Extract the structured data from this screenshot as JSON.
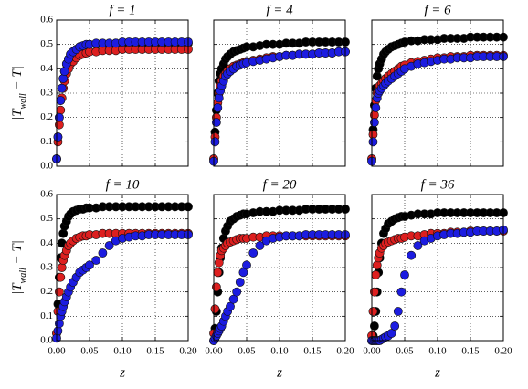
{
  "chart_data": [
    {
      "type": "scatter",
      "title": "f = 1",
      "x": [
        0,
        0.002,
        0.004,
        0.006,
        0.008,
        0.01,
        0.012,
        0.015,
        0.018,
        0.021,
        0.025,
        0.03,
        0.035,
        0.04,
        0.045,
        0.05,
        0.06,
        0.07,
        0.08,
        0.09,
        0.1,
        0.11,
        0.12,
        0.13,
        0.14,
        0.15,
        0.16,
        0.17,
        0.18,
        0.19,
        0.2
      ],
      "series": [
        {
          "color": "#000000",
          "values": [
            0.03,
            0.12,
            0.2,
            0.27,
            0.32,
            0.36,
            0.39,
            0.42,
            0.44,
            0.46,
            0.47,
            0.48,
            0.49,
            0.49,
            0.495,
            0.5,
            0.5,
            0.5,
            0.5,
            0.505,
            0.505,
            0.505,
            0.505,
            0.505,
            0.505,
            0.505,
            0.505,
            0.505,
            0.505,
            0.505,
            0.505
          ]
        },
        {
          "color": "#dd1f1f",
          "values": [
            0.03,
            0.1,
            0.17,
            0.23,
            0.28,
            0.32,
            0.35,
            0.38,
            0.4,
            0.42,
            0.43,
            0.445,
            0.455,
            0.46,
            0.465,
            0.47,
            0.47,
            0.475,
            0.475,
            0.475,
            0.48,
            0.48,
            0.48,
            0.48,
            0.48,
            0.48,
            0.48,
            0.48,
            0.48,
            0.48,
            0.48
          ]
        },
        {
          "color": "#1c1ce0",
          "values": [
            0.03,
            0.12,
            0.2,
            0.27,
            0.32,
            0.36,
            0.39,
            0.42,
            0.44,
            0.46,
            0.47,
            0.48,
            0.49,
            0.495,
            0.5,
            0.5,
            0.505,
            0.505,
            0.505,
            0.505,
            0.51,
            0.51,
            0.51,
            0.51,
            0.51,
            0.51,
            0.51,
            0.51,
            0.51,
            0.51,
            0.51
          ]
        }
      ],
      "xlim": [
        0,
        0.2
      ],
      "ylim": [
        0,
        0.6
      ],
      "xticks": [
        0,
        0.05,
        0.1,
        0.15,
        0.2
      ],
      "yticks": [
        {
          "value": 0,
          "label": "0.0"
        },
        {
          "value": 0.1,
          "label": "0.1"
        },
        {
          "value": 0.2,
          "label": "0.2"
        },
        {
          "value": 0.3,
          "label": "0.3"
        },
        {
          "value": 0.4,
          "label": "0.4"
        },
        {
          "value": 0.5,
          "label": "0.5"
        },
        {
          "value": 0.6,
          "label": "0.6"
        }
      ],
      "ylabel": [
        "|T",
        "wall",
        " − T|"
      ],
      "grid": true
    },
    {
      "type": "scatter",
      "title": "f = 4",
      "x": [
        0,
        0.002,
        0.004,
        0.006,
        0.008,
        0.01,
        0.012,
        0.015,
        0.018,
        0.021,
        0.025,
        0.03,
        0.035,
        0.04,
        0.045,
        0.05,
        0.06,
        0.07,
        0.08,
        0.09,
        0.1,
        0.11,
        0.12,
        0.13,
        0.14,
        0.15,
        0.16,
        0.17,
        0.18,
        0.19,
        0.2
      ],
      "series": [
        {
          "color": "#000000",
          "values": [
            0.03,
            0.14,
            0.23,
            0.3,
            0.35,
            0.38,
            0.4,
            0.42,
            0.44,
            0.45,
            0.46,
            0.47,
            0.475,
            0.48,
            0.485,
            0.49,
            0.49,
            0.495,
            0.5,
            0.5,
            0.5,
            0.505,
            0.505,
            0.505,
            0.51,
            0.51,
            0.51,
            0.51,
            0.51,
            0.51,
            0.51
          ]
        },
        {
          "color": "#dd1f1f",
          "values": [
            0.03,
            0.12,
            0.2,
            0.26,
            0.3,
            0.33,
            0.35,
            0.37,
            0.38,
            0.39,
            0.4,
            0.41,
            0.415,
            0.42,
            0.425,
            0.43,
            0.435,
            0.44,
            0.445,
            0.45,
            0.45,
            0.455,
            0.455,
            0.46,
            0.46,
            0.46,
            0.465,
            0.465,
            0.465,
            0.47,
            0.47
          ]
        },
        {
          "color": "#1c1ce0",
          "values": [
            0.02,
            0.1,
            0.18,
            0.24,
            0.28,
            0.31,
            0.33,
            0.35,
            0.37,
            0.38,
            0.39,
            0.4,
            0.41,
            0.415,
            0.42,
            0.425,
            0.43,
            0.435,
            0.44,
            0.445,
            0.45,
            0.455,
            0.455,
            0.46,
            0.46,
            0.46,
            0.465,
            0.465,
            0.465,
            0.47,
            0.47
          ]
        }
      ],
      "xlim": [
        0,
        0.2
      ],
      "ylim": [
        0,
        0.6
      ],
      "xticks": [
        0,
        0.05,
        0.1,
        0.15,
        0.2
      ],
      "yticks": [
        0,
        0.1,
        0.2,
        0.3,
        0.4,
        0.5,
        0.6
      ],
      "grid": true
    },
    {
      "type": "scatter",
      "title": "f = 6",
      "x": [
        0,
        0.002,
        0.004,
        0.006,
        0.008,
        0.01,
        0.012,
        0.015,
        0.018,
        0.021,
        0.025,
        0.03,
        0.035,
        0.04,
        0.045,
        0.05,
        0.06,
        0.07,
        0.08,
        0.09,
        0.1,
        0.11,
        0.12,
        0.13,
        0.14,
        0.15,
        0.16,
        0.17,
        0.18,
        0.19,
        0.2
      ],
      "series": [
        {
          "color": "#000000",
          "values": [
            0.03,
            0.15,
            0.25,
            0.32,
            0.37,
            0.4,
            0.42,
            0.44,
            0.46,
            0.47,
            0.48,
            0.49,
            0.495,
            0.5,
            0.505,
            0.51,
            0.515,
            0.515,
            0.52,
            0.52,
            0.52,
            0.525,
            0.525,
            0.525,
            0.525,
            0.53,
            0.53,
            0.53,
            0.53,
            0.53,
            0.53
          ]
        },
        {
          "color": "#dd1f1f",
          "values": [
            0.03,
            0.13,
            0.21,
            0.27,
            0.3,
            0.32,
            0.33,
            0.34,
            0.35,
            0.36,
            0.37,
            0.38,
            0.39,
            0.4,
            0.41,
            0.415,
            0.425,
            0.43,
            0.435,
            0.44,
            0.445,
            0.445,
            0.45,
            0.45,
            0.45,
            0.455,
            0.455,
            0.455,
            0.455,
            0.455,
            0.455
          ]
        },
        {
          "color": "#1c1ce0",
          "values": [
            0.02,
            0.1,
            0.18,
            0.24,
            0.28,
            0.3,
            0.31,
            0.32,
            0.33,
            0.34,
            0.35,
            0.36,
            0.37,
            0.38,
            0.39,
            0.4,
            0.41,
            0.42,
            0.425,
            0.43,
            0.435,
            0.44,
            0.44,
            0.445,
            0.445,
            0.445,
            0.45,
            0.45,
            0.45,
            0.45,
            0.45
          ]
        }
      ],
      "xlim": [
        0,
        0.2
      ],
      "ylim": [
        0,
        0.6
      ],
      "xticks": [
        0,
        0.05,
        0.1,
        0.15,
        0.2
      ],
      "yticks": [
        0,
        0.1,
        0.2,
        0.3,
        0.4,
        0.5,
        0.6
      ],
      "grid": true
    },
    {
      "type": "scatter",
      "title": "f = 10",
      "x": [
        0,
        0.002,
        0.004,
        0.006,
        0.008,
        0.01,
        0.012,
        0.015,
        0.018,
        0.021,
        0.025,
        0.03,
        0.035,
        0.04,
        0.045,
        0.05,
        0.06,
        0.07,
        0.08,
        0.09,
        0.1,
        0.11,
        0.12,
        0.13,
        0.14,
        0.15,
        0.16,
        0.17,
        0.18,
        0.19,
        0.2
      ],
      "series": [
        {
          "color": "#000000",
          "values": [
            0.03,
            0.15,
            0.26,
            0.34,
            0.4,
            0.44,
            0.47,
            0.49,
            0.51,
            0.52,
            0.53,
            0.535,
            0.54,
            0.54,
            0.545,
            0.545,
            0.545,
            0.55,
            0.55,
            0.55,
            0.55,
            0.55,
            0.55,
            0.55,
            0.55,
            0.55,
            0.55,
            0.55,
            0.55,
            0.55,
            0.55
          ]
        },
        {
          "color": "#dd1f1f",
          "values": [
            0.03,
            0.12,
            0.2,
            0.26,
            0.3,
            0.33,
            0.35,
            0.37,
            0.39,
            0.4,
            0.41,
            0.42,
            0.425,
            0.43,
            0.43,
            0.435,
            0.435,
            0.44,
            0.44,
            0.44,
            0.44,
            0.44,
            0.44,
            0.44,
            0.44,
            0.44,
            0.44,
            0.44,
            0.44,
            0.44,
            0.44
          ]
        },
        {
          "color": "#1c1ce0",
          "values": [
            0.01,
            0.04,
            0.07,
            0.1,
            0.12,
            0.14,
            0.16,
            0.18,
            0.2,
            0.22,
            0.24,
            0.26,
            0.28,
            0.29,
            0.3,
            0.31,
            0.33,
            0.36,
            0.39,
            0.41,
            0.42,
            0.425,
            0.43,
            0.43,
            0.435,
            0.435,
            0.435,
            0.435,
            0.435,
            0.435,
            0.435
          ]
        }
      ],
      "xlim": [
        0,
        0.2
      ],
      "ylim": [
        0,
        0.6
      ],
      "xticks": [
        {
          "value": 0,
          "label": "0.00"
        },
        {
          "value": 0.05,
          "label": "0.05"
        },
        {
          "value": 0.1,
          "label": "0.10"
        },
        {
          "value": 0.15,
          "label": "0.15"
        },
        {
          "value": 0.2,
          "label": "0.20"
        }
      ],
      "yticks": [
        {
          "value": 0,
          "label": "0.0"
        },
        {
          "value": 0.1,
          "label": "0.1"
        },
        {
          "value": 0.2,
          "label": "0.2"
        },
        {
          "value": 0.3,
          "label": "0.3"
        },
        {
          "value": 0.4,
          "label": "0.4"
        },
        {
          "value": 0.5,
          "label": "0.5"
        },
        {
          "value": 0.6,
          "label": "0.6"
        }
      ],
      "xlabel": "z",
      "ylabel": [
        "|T",
        "wall",
        " − T|"
      ],
      "grid": true
    },
    {
      "type": "scatter",
      "title": "f = 20",
      "x": [
        0,
        0.002,
        0.004,
        0.006,
        0.008,
        0.01,
        0.012,
        0.015,
        0.018,
        0.021,
        0.025,
        0.03,
        0.035,
        0.04,
        0.045,
        0.05,
        0.06,
        0.07,
        0.08,
        0.09,
        0.1,
        0.11,
        0.12,
        0.13,
        0.14,
        0.15,
        0.16,
        0.17,
        0.18,
        0.19,
        0.2
      ],
      "series": [
        {
          "color": "#000000",
          "values": [
            0,
            0.05,
            0.12,
            0.2,
            0.28,
            0.34,
            0.38,
            0.42,
            0.45,
            0.47,
            0.49,
            0.5,
            0.51,
            0.515,
            0.52,
            0.52,
            0.525,
            0.53,
            0.53,
            0.53,
            0.535,
            0.535,
            0.535,
            0.535,
            0.54,
            0.54,
            0.54,
            0.54,
            0.54,
            0.54,
            0.54
          ]
        },
        {
          "color": "#dd1f1f",
          "values": [
            0.03,
            0.13,
            0.22,
            0.28,
            0.32,
            0.35,
            0.37,
            0.38,
            0.39,
            0.4,
            0.405,
            0.41,
            0.415,
            0.42,
            0.42,
            0.42,
            0.425,
            0.425,
            0.43,
            0.43,
            0.43,
            0.43,
            0.43,
            0.43,
            0.43,
            0.43,
            0.43,
            0.43,
            0.43,
            0.43,
            0.43
          ]
        },
        {
          "color": "#1c1ce0",
          "values": [
            0,
            0.01,
            0.02,
            0.03,
            0.04,
            0.05,
            0.06,
            0.08,
            0.1,
            0.12,
            0.14,
            0.17,
            0.2,
            0.24,
            0.28,
            0.31,
            0.36,
            0.39,
            0.41,
            0.42,
            0.425,
            0.43,
            0.43,
            0.43,
            0.435,
            0.435,
            0.435,
            0.435,
            0.435,
            0.435,
            0.435
          ]
        }
      ],
      "xlim": [
        0,
        0.2
      ],
      "ylim": [
        0,
        0.6
      ],
      "xticks": [
        {
          "value": 0,
          "label": "0.00"
        },
        {
          "value": 0.05,
          "label": "0.05"
        },
        {
          "value": 0.1,
          "label": "0.10"
        },
        {
          "value": 0.15,
          "label": "0.15"
        },
        {
          "value": 0.2,
          "label": "0.20"
        }
      ],
      "yticks": [
        0,
        0.1,
        0.2,
        0.3,
        0.4,
        0.5,
        0.6
      ],
      "xlabel": "z",
      "grid": true
    },
    {
      "type": "scatter",
      "title": "f = 36",
      "x": [
        0,
        0.002,
        0.004,
        0.006,
        0.008,
        0.01,
        0.012,
        0.015,
        0.018,
        0.021,
        0.025,
        0.03,
        0.035,
        0.04,
        0.045,
        0.05,
        0.06,
        0.07,
        0.08,
        0.09,
        0.1,
        0.11,
        0.12,
        0.13,
        0.14,
        0.15,
        0.16,
        0.17,
        0.18,
        0.19,
        0.2
      ],
      "series": [
        {
          "color": "#000000",
          "values": [
            0,
            0.02,
            0.06,
            0.12,
            0.2,
            0.28,
            0.34,
            0.4,
            0.44,
            0.46,
            0.48,
            0.49,
            0.5,
            0.505,
            0.51,
            0.51,
            0.515,
            0.52,
            0.52,
            0.52,
            0.525,
            0.525,
            0.525,
            0.525,
            0.525,
            0.525,
            0.525,
            0.525,
            0.525,
            0.525,
            0.525
          ]
        },
        {
          "color": "#dd1f1f",
          "values": [
            0.02,
            0.12,
            0.2,
            0.27,
            0.31,
            0.34,
            0.36,
            0.38,
            0.39,
            0.4,
            0.405,
            0.41,
            0.415,
            0.42,
            0.42,
            0.425,
            0.43,
            0.43,
            0.435,
            0.44,
            0.44,
            0.44,
            0.445,
            0.445,
            0.445,
            0.45,
            0.45,
            0.45,
            0.45,
            0.45,
            0.45
          ]
        },
        {
          "color": "#1c1ce0",
          "values": [
            0,
            0,
            0,
            0,
            0,
            0,
            0,
            0.005,
            0.01,
            0.015,
            0.02,
            0.03,
            0.06,
            0.12,
            0.2,
            0.27,
            0.35,
            0.39,
            0.41,
            0.42,
            0.43,
            0.435,
            0.44,
            0.44,
            0.445,
            0.445,
            0.45,
            0.45,
            0.45,
            0.45,
            0.455
          ]
        }
      ],
      "xlim": [
        0,
        0.2
      ],
      "ylim": [
        0,
        0.6
      ],
      "xticks": [
        {
          "value": 0,
          "label": "0.00"
        },
        {
          "value": 0.05,
          "label": "0.05"
        },
        {
          "value": 0.1,
          "label": "0.10"
        },
        {
          "value": 0.15,
          "label": "0.15"
        },
        {
          "value": 0.2,
          "label": "0.20"
        }
      ],
      "yticks": [
        0,
        0.1,
        0.2,
        0.3,
        0.4,
        0.5,
        0.6
      ],
      "xlabel": "z",
      "grid": true
    }
  ]
}
